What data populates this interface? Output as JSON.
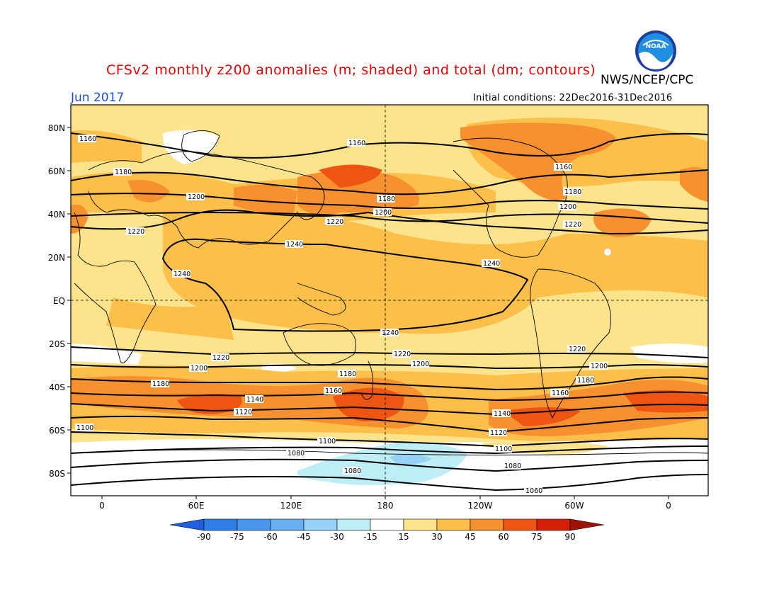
{
  "header": {
    "title": "CFSv2 monthly z200 anomalies (m; shaded) and total (dm; contours)",
    "title_color": "#e60000",
    "agency": "NWS/NCEP/CPC",
    "valid_month": "Jun 2017",
    "valid_month_color": "#1e4fd0",
    "initial_conditions": "Initial conditions: 22Dec2016-31Dec2016",
    "logo_text": "NOAA"
  },
  "map": {
    "projection": "cylindrical-equidistant",
    "lon_labels": [
      "0",
      "60E",
      "120E",
      "180",
      "120W",
      "60W",
      "0"
    ],
    "lat_labels": [
      "80N",
      "60N",
      "40N",
      "20N",
      "EQ",
      "20S",
      "40S",
      "60S",
      "80S"
    ],
    "contour_labels": {
      "north": [
        "1160",
        "1160",
        "1160",
        "1180",
        "1180",
        "1180",
        "1200",
        "1200",
        "1200",
        "1220",
        "1220",
        "1220"
      ],
      "tropics": [
        "1240",
        "1240",
        "1240",
        "1240"
      ],
      "south": [
        "1220",
        "1220",
        "1220",
        "1200",
        "1200",
        "1200",
        "1180",
        "1180",
        "1180",
        "1160",
        "1160",
        "1140",
        "1140",
        "1120",
        "1120",
        "1100",
        "1100",
        "1100",
        "1080",
        "1080",
        "1080",
        "1060"
      ]
    }
  },
  "colorbar": {
    "labels": [
      "-90",
      "-75",
      "-60",
      "-45",
      "-30",
      "-15",
      "15",
      "30",
      "45",
      "60",
      "75",
      "90"
    ],
    "colors": [
      "#1f5fe0",
      "#2f7ee8",
      "#4896ee",
      "#6aaef2",
      "#96d2f5",
      "#bdeef5",
      "#ffffff",
      "#fde48c",
      "#fbbf4a",
      "#f7902e",
      "#ee5412",
      "#d31f07",
      "#a01204"
    ]
  }
}
